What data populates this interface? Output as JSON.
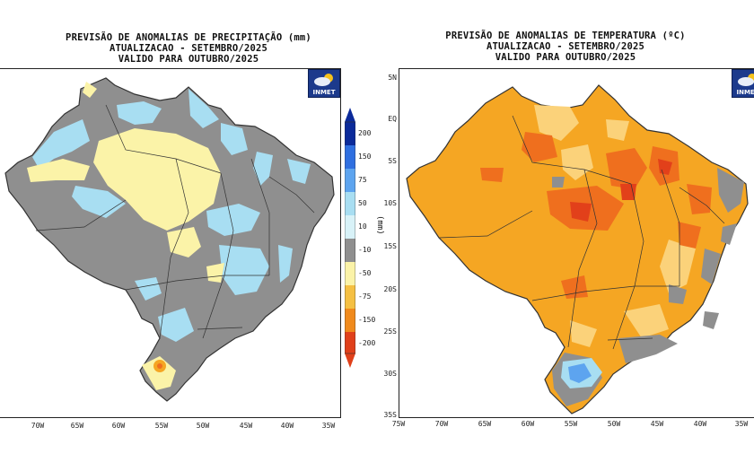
{
  "precip_panel": {
    "title_lines": [
      "PREVISÃO DE ANOMALIAS DE PRECIPITAÇÃO (mm)",
      "ATUALIZACAO - SETEMBRO/2025",
      "VALIDO PARA OUTUBRO/2025"
    ],
    "logo": "INMET",
    "x_ticks": [
      "70W",
      "65W",
      "60W",
      "55W",
      "50W",
      "45W",
      "40W",
      "35W"
    ],
    "colorbar": {
      "unit": "(mm)",
      "labels": [
        "200",
        "150",
        "75",
        "50",
        "10",
        "-10",
        "-50",
        "-75",
        "-150",
        "-200"
      ],
      "colors": [
        "#0b2a9a",
        "#2f6fe0",
        "#5da4ef",
        "#a8def2",
        "#d8f2f8",
        "#8f8f8f",
        "#fbf3a8",
        "#f5c043",
        "#f08a1c",
        "#e0401a"
      ]
    }
  },
  "temp_panel": {
    "title_lines": [
      "PREVISÃO DE ANOMALIAS DE TEMPERATURA (ºC)",
      "ATUALIZACAO - SETEMBRO/2025",
      "VALIDO PARA OUTUBRO/2025"
    ],
    "logo": "INMET",
    "x_ticks": [
      "75W",
      "70W",
      "65W",
      "60W",
      "55W",
      "50W",
      "45W",
      "40W",
      "35W"
    ],
    "y_ticks": [
      "5N",
      "EQ",
      "5S",
      "10S",
      "15S",
      "20S",
      "25S",
      "30S",
      "35S"
    ]
  },
  "colors": {
    "gray": "#8f8f8f",
    "light_yellow": "#fbf3a8",
    "light_blue": "#a8def2",
    "orange": "#f5a623",
    "dark_orange": "#ef6f1e",
    "red_orange": "#e2401a",
    "blue": "#5da4ef"
  }
}
